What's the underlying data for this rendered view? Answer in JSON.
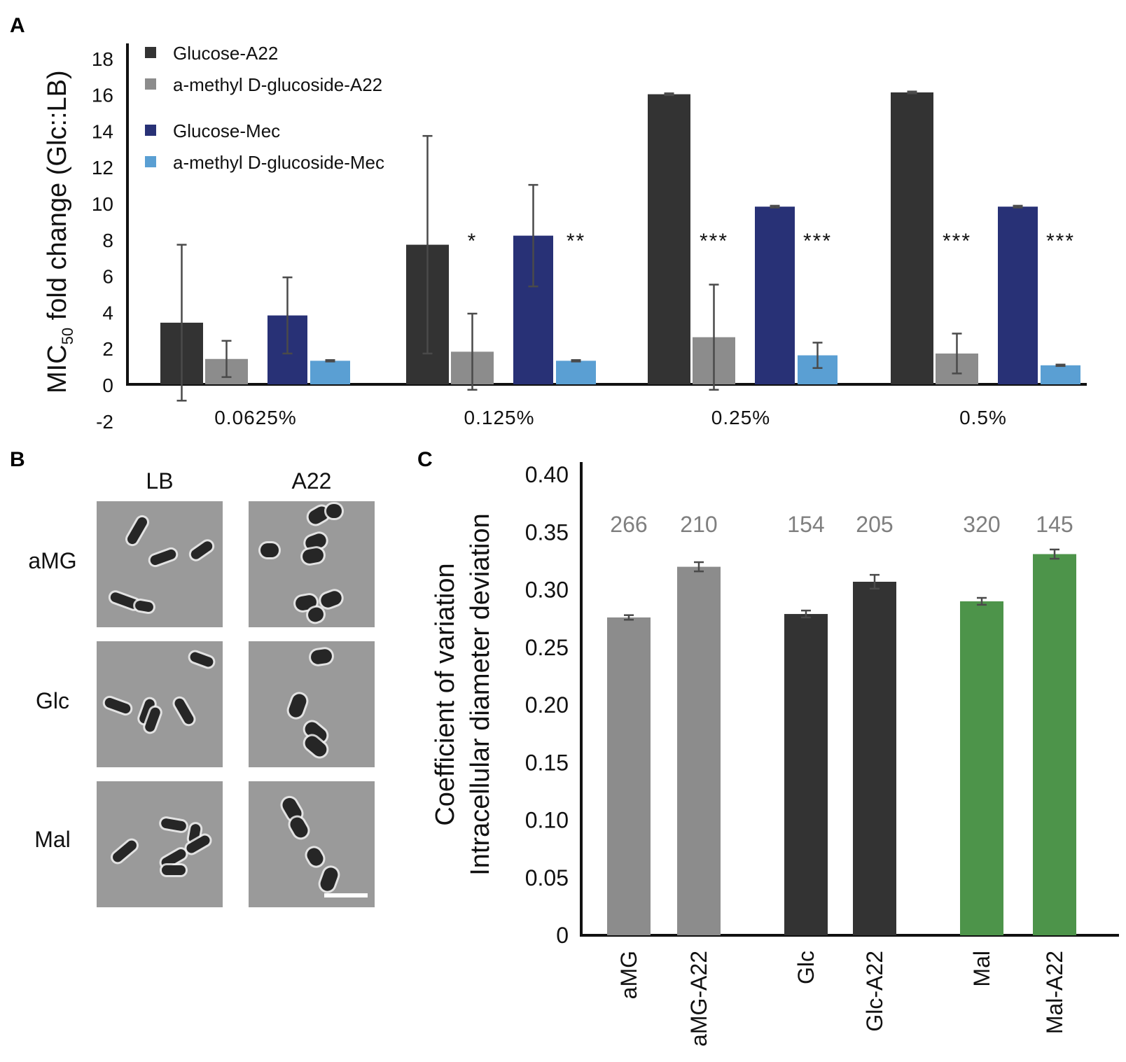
{
  "panels": {
    "a": "A",
    "b": "B",
    "c": "C"
  },
  "colors": {
    "glucose_a22": "#333333",
    "amg_a22": "#8c8c8c",
    "glucose_mec": "#283176",
    "amg_mec": "#5a9fd3",
    "green": "#4d944a",
    "axis": "#111111",
    "errorbar": "#4a4a4a",
    "count_text": "#7f7f7f"
  },
  "chart_data": [
    {
      "id": "A",
      "type": "bar",
      "title": "",
      "xlabel": "",
      "ylabel": "MIC",
      "ylabel_sub": "50",
      "ylabel_rest": " fold change (Glc::LB)",
      "ylim": [
        -2,
        18
      ],
      "yticks": [
        -2,
        0,
        2,
        4,
        6,
        8,
        10,
        12,
        14,
        16,
        18
      ],
      "grid": false,
      "legend_position": "top-left",
      "categories": [
        "0.0625%",
        "0.125%",
        "0.25%",
        "0.5%"
      ],
      "series": [
        {
          "name": "Glucose-A22",
          "color_key": "glucose_a22",
          "values": [
            3.4,
            7.7,
            16.0,
            16.1
          ],
          "errors": [
            4.3,
            6.0,
            0.05,
            0.05
          ]
        },
        {
          "name": "a-methyl D-glucoside-A22",
          "color_key": "amg_a22",
          "values": [
            1.4,
            1.8,
            2.6,
            1.7
          ],
          "errors": [
            1.0,
            2.1,
            2.9,
            1.1
          ]
        },
        {
          "name": "Glucose-Mec",
          "color_key": "glucose_mec",
          "values": [
            3.8,
            8.2,
            9.8,
            9.8
          ],
          "errors": [
            2.1,
            2.8,
            0.05,
            0.05
          ]
        },
        {
          "name": "a-methyl D-glucoside-Mec",
          "color_key": "amg_mec",
          "values": [
            1.3,
            1.3,
            1.6,
            1.05
          ],
          "errors": [
            0.04,
            0.04,
            0.7,
            0.04
          ]
        }
      ],
      "annotations": [
        {
          "text": "*",
          "category": "0.125%",
          "series": "a-methyl D-glucoside-A22",
          "y": 8
        },
        {
          "text": "**",
          "category": "0.125%",
          "series": "a-methyl D-glucoside-Mec",
          "y": 8
        },
        {
          "text": "***",
          "category": "0.25%",
          "series": "a-methyl D-glucoside-A22",
          "y": 8
        },
        {
          "text": "***",
          "category": "0.25%",
          "series": "a-methyl D-glucoside-Mec",
          "y": 8
        },
        {
          "text": "***",
          "category": "0.5%",
          "series": "a-methyl D-glucoside-A22",
          "y": 8
        },
        {
          "text": "***",
          "category": "0.5%",
          "series": "a-methyl D-glucoside-Mec",
          "y": 8
        }
      ]
    },
    {
      "id": "C",
      "type": "bar",
      "title": "",
      "xlabel": "",
      "ylabel_lines": [
        "Coefficient of variation",
        "Intracellular diameter deviation"
      ],
      "ylim": [
        0,
        0.4
      ],
      "yticks": [
        "0",
        "0.05",
        "0.10",
        "0.15",
        "0.20",
        "0.25",
        "0.30",
        "0.35",
        "0.40"
      ],
      "grid": false,
      "categories": [
        "aMG",
        "aMG-A22",
        "Glc",
        "Glc-A22",
        "Mal",
        "Mal-A22"
      ],
      "values": [
        0.276,
        0.32,
        0.279,
        0.307,
        0.29,
        0.331
      ],
      "errors": [
        0.002,
        0.004,
        0.003,
        0.006,
        0.003,
        0.004
      ],
      "counts": [
        "266",
        "210",
        "154",
        "205",
        "320",
        "145"
      ],
      "color_keys": [
        "amg_a22",
        "amg_a22",
        "glucose_a22",
        "glucose_a22",
        "green",
        "green"
      ]
    }
  ],
  "micrographs": {
    "columns": [
      "LB",
      "A22"
    ],
    "rows": [
      "aMG",
      "Glc",
      "Mal"
    ]
  }
}
